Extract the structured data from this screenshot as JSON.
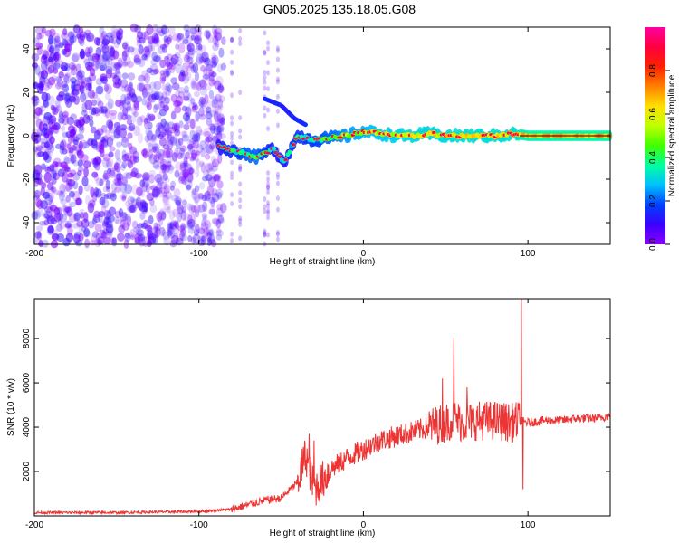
{
  "title": "GN05.2025.135.18.05.G08",
  "chart_data": [
    {
      "type": "heatmap",
      "id": "spectrogram",
      "xlabel": "Height of straight line (km)",
      "ylabel": "Frequency (Hz)",
      "xlim": [
        -200,
        150
      ],
      "ylim": [
        -50,
        50
      ],
      "x_ticks": [
        -200,
        -100,
        0,
        100
      ],
      "y_ticks": [
        -40,
        -20,
        0,
        20,
        40
      ],
      "colorbar": {
        "label": "Normalized spectral amplitude",
        "range": [
          0,
          1
        ],
        "ticks": [
          0.0,
          0.2,
          0.4,
          0.6,
          0.8
        ],
        "colors": [
          "#8b00ff",
          "#3b00ff",
          "#0040ff",
          "#00c0ff",
          "#00ffa0",
          "#40ff00",
          "#c0ff00",
          "#ffe000",
          "#ff8000",
          "#ff2000",
          "#ff0040",
          "#ff00a0"
        ]
      },
      "noise_region_x": [
        -200,
        -85
      ],
      "signal_track": [
        {
          "x": -88,
          "f": -5,
          "amp": 0.35
        },
        {
          "x": -80,
          "f": -7,
          "amp": 0.45
        },
        {
          "x": -72,
          "f": -8,
          "amp": 0.55
        },
        {
          "x": -65,
          "f": -10,
          "amp": 0.6
        },
        {
          "x": -55,
          "f": -6,
          "amp": 0.4
        },
        {
          "x": -48,
          "f": -12,
          "amp": 0.35
        },
        {
          "x": -40,
          "f": 0,
          "amp": 0.45
        },
        {
          "x": -30,
          "f": -2,
          "amp": 0.5
        },
        {
          "x": -20,
          "f": -1,
          "amp": 0.6
        },
        {
          "x": -10,
          "f": 0,
          "amp": 0.7
        },
        {
          "x": 0,
          "f": 2,
          "amp": 0.75
        },
        {
          "x": 10,
          "f": 1,
          "amp": 0.8
        },
        {
          "x": 20,
          "f": 0,
          "amp": 0.85
        },
        {
          "x": 30,
          "f": 0,
          "amp": 0.88
        },
        {
          "x": 40,
          "f": 1,
          "amp": 0.85
        },
        {
          "x": 50,
          "f": 0,
          "amp": 0.88
        },
        {
          "x": 60,
          "f": 0,
          "amp": 0.9
        },
        {
          "x": 70,
          "f": 0,
          "amp": 0.9
        },
        {
          "x": 80,
          "f": 0,
          "amp": 0.9
        },
        {
          "x": 92,
          "f": 1,
          "amp": 0.9
        },
        {
          "x": 100,
          "f": 0,
          "amp": 1.0
        },
        {
          "x": 150,
          "f": 0,
          "amp": 1.0
        }
      ],
      "upper_branch": [
        {
          "x": -60,
          "f": 17
        },
        {
          "x": -50,
          "f": 14
        },
        {
          "x": -42,
          "f": 8
        },
        {
          "x": -35,
          "f": 5
        }
      ]
    },
    {
      "type": "line",
      "id": "snr",
      "xlabel": "Height of straight line (km)",
      "ylabel": "SNR (10 * v/v)",
      "xlim": [
        -200,
        150
      ],
      "ylim": [
        0,
        9800
      ],
      "x_ticks": [
        -200,
        -100,
        0,
        100
      ],
      "y_ticks": [
        2000,
        4000,
        6000,
        8000
      ],
      "color": "#ee3333",
      "x": [
        -200,
        -150,
        -120,
        -100,
        -80,
        -70,
        -60,
        -50,
        -40,
        -35,
        -30,
        -25,
        -20,
        -10,
        0,
        10,
        20,
        30,
        40,
        50,
        55,
        60,
        70,
        80,
        90,
        95,
        100,
        110,
        120,
        130,
        140,
        150
      ],
      "y": [
        150,
        150,
        180,
        200,
        300,
        500,
        700,
        800,
        1500,
        2800,
        1200,
        1600,
        2100,
        2600,
        3000,
        3400,
        3600,
        3800,
        4000,
        4200,
        4400,
        4200,
        4300,
        4300,
        4200,
        4300,
        4200,
        4300,
        4300,
        4400,
        4400,
        4500
      ],
      "spikes": [
        {
          "x": -33,
          "y": 3700
        },
        {
          "x": -30,
          "y": 3400
        },
        {
          "x": 48,
          "y": 6200
        },
        {
          "x": 55,
          "y": 8000
        },
        {
          "x": 63,
          "y": 5800
        },
        {
          "x": 96,
          "y": 9800
        },
        {
          "x": 97,
          "y": 1200
        }
      ]
    }
  ]
}
